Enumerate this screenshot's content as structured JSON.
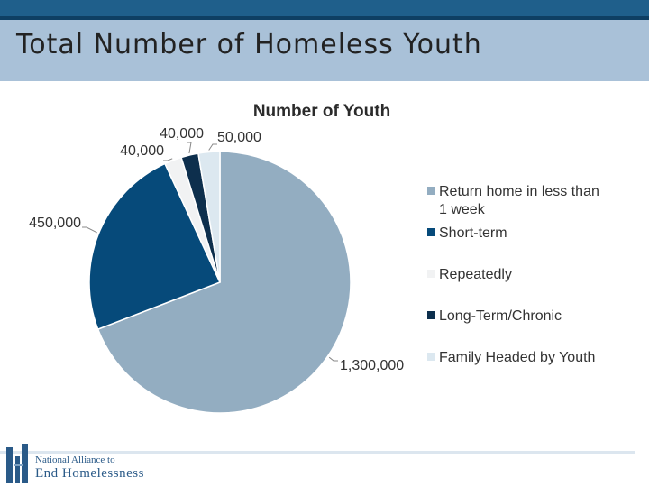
{
  "page": {
    "title": "Total Number of Homeless Youth"
  },
  "logo": {
    "line1": "National Alliance to",
    "line2": "End Homelessness"
  },
  "chart_data": {
    "type": "pie",
    "title": "Number of Youth",
    "legend_position": "right",
    "slices": [
      {
        "name": "Return home in less than 1 week",
        "value": 1300000,
        "label": "1,300,000",
        "color": "#93adc1"
      },
      {
        "name": "Short-term",
        "value": 450000,
        "label": "450,000",
        "color": "#064a7a"
      },
      {
        "name": "Repeatedly",
        "value": 40000,
        "label": "40,000",
        "color": "#f1f2f3"
      },
      {
        "name": "Long-Term/Chronic",
        "value": 40000,
        "label": "40,000",
        "color": "#0d2f4d"
      },
      {
        "name": "Family Headed by Youth",
        "value": 50000,
        "label": "50,000",
        "color": "#dce8f0"
      }
    ]
  }
}
